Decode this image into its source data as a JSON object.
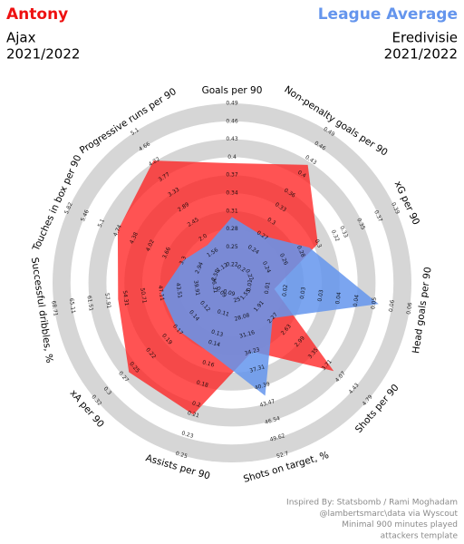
{
  "chart_data": {
    "type": "radar",
    "categories": [
      "Goals per 90",
      "Non-penalty goals per 90",
      "xG per 90",
      "Head goals per 90",
      "Shots per 90",
      "Shots on target, %",
      "Assists per 90",
      "xA per 90",
      "Successful dribbles, %",
      "Touches in box per 90",
      "Progressive runs per 90"
    ],
    "axes": [
      {
        "lim": [
          0.19,
          0.49
        ],
        "ticks": [
          0.22,
          0.25,
          0.28,
          0.31,
          0.34,
          0.37,
          0.4,
          0.43,
          0.46,
          0.49
        ]
      },
      {
        "lim": [
          0.17,
          0.49
        ],
        "ticks": [
          0.2,
          0.24,
          0.27,
          0.3,
          0.33,
          0.36,
          0.4,
          0.43,
          0.46,
          0.49
        ]
      },
      {
        "lim": [
          0.2,
          0.39
        ],
        "ticks": [
          0.22,
          0.24,
          0.26,
          0.28,
          0.3,
          0.32,
          0.33,
          0.35,
          0.37,
          0.39
        ]
      },
      {
        "lim": [
          0,
          0.063
        ],
        "ticks": [
          {
            "value": 0.0063,
            "label": "0.01"
          },
          {
            "value": 0.0126,
            "label": "0.01"
          },
          {
            "value": 0.0189,
            "label": "0.02"
          },
          {
            "value": 0.0252,
            "label": "0.03"
          },
          {
            "value": 0.0315,
            "label": "0.03"
          },
          {
            "value": 0.0378,
            "label": "0.04"
          },
          {
            "value": 0.0441,
            "label": "0.04"
          },
          {
            "value": 0.0504,
            "label": "0.05"
          },
          {
            "value": 0.0567,
            "label": "0.06"
          },
          {
            "value": 0.063,
            "label": "0.06"
          }
        ]
      },
      {
        "lim": [
          1.19,
          4.79
        ],
        "ticks": [
          1.55,
          1.91,
          2.27,
          2.63,
          2.99,
          3.35,
          3.71,
          4.07,
          4.43,
          4.79
        ]
      },
      {
        "lim": [
          21.92,
          52.7
        ],
        "ticks": [
          25,
          28.08,
          31.16,
          34.23,
          37.31,
          40.39,
          43.47,
          46.54,
          49.62,
          52.7
        ]
      },
      {
        "lim": [
          0.08,
          0.25
        ],
        "ticks": [
          0.09,
          0.11,
          0.13,
          0.14,
          0.16,
          0.18,
          0.2,
          0.21,
          0.23,
          0.25
        ]
      },
      {
        "lim": [
          0.07,
          0.32
        ],
        "ticks": [
          0.09,
          0.12,
          0.14,
          0.17,
          0.19,
          0.22,
          0.25,
          0.27,
          0.3,
          0.32
        ]
      },
      {
        "lim": [
          32.71,
          68.71
        ],
        "ticks": [
          36.31,
          39.91,
          43.51,
          47.11,
          50.71,
          54.31,
          57.91,
          61.51,
          65.11,
          68.71
        ]
      },
      {
        "lim": [
          2.22,
          5.82
        ],
        "ticks": [
          2.58,
          2.94,
          3.3,
          3.66,
          4.02,
          4.38,
          4.74,
          5.1,
          5.46,
          5.82
        ]
      },
      {
        "lim": [
          0.68,
          5.1
        ],
        "ticks": [
          1.12,
          1.56,
          {
            "value": 2,
            "label": "2.0"
          },
          2.45,
          2.89,
          3.33,
          3.77,
          4.22,
          4.66,
          5.1
        ]
      }
    ],
    "series": [
      {
        "name": "Antony",
        "team": "Ajax",
        "season": "2021/2022",
        "color": "#ff1a1a",
        "values": [
          0.39,
          0.42,
          0.3,
          0.015,
          3.89,
          34.2,
          0.21,
          0.26,
          55.8,
          4.74,
          4.26
        ]
      },
      {
        "name": "League Average",
        "team": "Eredivisie",
        "season": "2021/2022",
        "color": "#6495ed",
        "values": [
          0.3,
          0.27,
          0.29,
          0.052,
          2.27,
          42.1,
          0.15,
          0.17,
          47.1,
          3.3,
          1.79
        ]
      }
    ],
    "credits": [
      "Inspired By: Statsbomb / Rami Moghadam",
      "@lambertsmarc\\data via Wyscout",
      "Minimal 900 minutes played",
      "attackers template"
    ]
  }
}
